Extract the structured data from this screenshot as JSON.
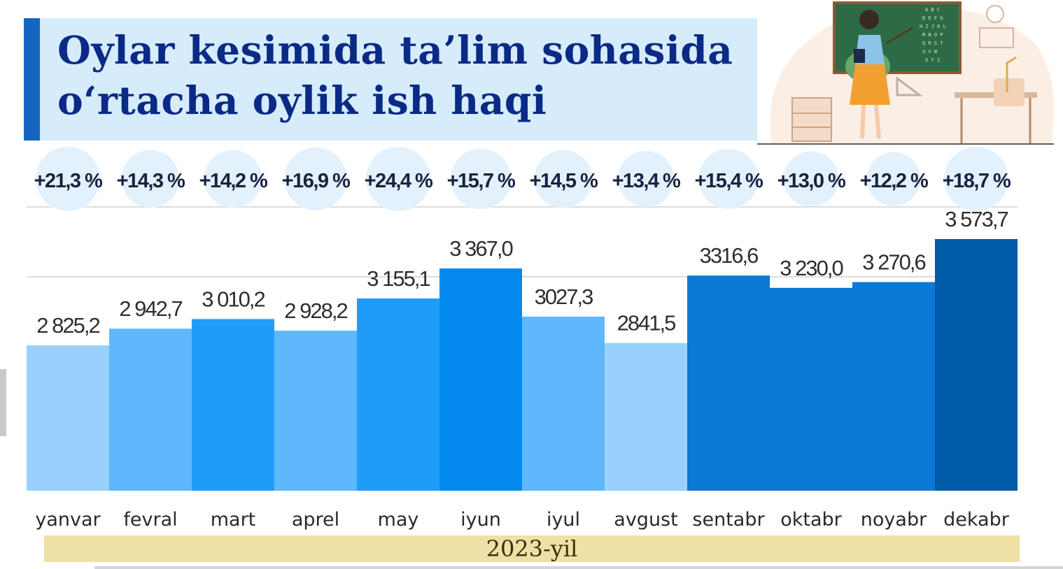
{
  "title": "Oylar kesimida ta’lim sohasida o‘rtacha oylik ish haqi",
  "footer_label": "2023-yil",
  "chart_data": {
    "type": "bar",
    "categories": [
      "yanvar",
      "fevral",
      "mart",
      "aprel",
      "may",
      "iyun",
      "iyul",
      "avgust",
      "sentabr",
      "oktabr",
      "noyabr",
      "dekabr"
    ],
    "values": [
      2825.2,
      2942.7,
      3010.2,
      2928.2,
      3155.1,
      3367.0,
      3027.3,
      2841.5,
      3316.6,
      3230.0,
      3270.6,
      3573.7
    ],
    "value_labels": [
      "2 825,2",
      "2 942,7",
      "3 010,2",
      "2 928,2",
      "3 155,1",
      "3 367,0",
      "3027,3",
      "2841,5",
      "3316,6",
      "3 230,0",
      "3 270,6",
      "3 573,7"
    ],
    "growth_labels": [
      "+21,3 %",
      "+14,3 %",
      "+14,2 %",
      "+16,9 %",
      "+24,4 %",
      "+15,7 %",
      "+14,5 %",
      "+13,4 %",
      "+15,4 %",
      "+13,0 %",
      "+12,2 %",
      "+18,7 %"
    ],
    "growth_values": [
      21.3,
      14.3,
      14.2,
      16.9,
      24.4,
      15.7,
      14.5,
      13.4,
      15.4,
      13.0,
      12.2,
      18.7
    ],
    "bar_colors": [
      "#99d1fc",
      "#5eb8fb",
      "#1f9cf8",
      "#5eb8fb",
      "#1f9cf8",
      "#048aee",
      "#5eb8fb",
      "#99d1fc",
      "#0b79d6",
      "#0b79d6",
      "#0b79d6",
      "#005aa8"
    ],
    "bubble_color": "#e3f1fd",
    "gridlines": true
  }
}
